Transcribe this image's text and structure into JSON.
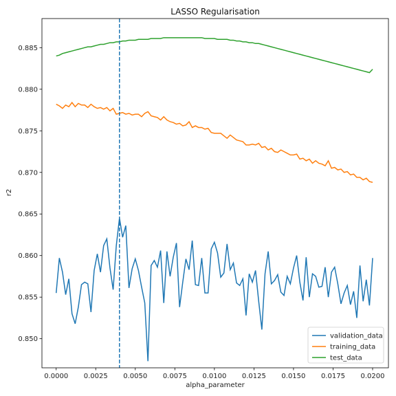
{
  "chart_data": {
    "type": "line",
    "title": "LASSO Regularisation",
    "xlabel": "alpha_parameter",
    "ylabel": "r2",
    "xlim": [
      -0.0009,
      0.021
    ],
    "ylim": [
      0.8465,
      0.8885
    ],
    "xticks": [
      0.0,
      0.0025,
      0.005,
      0.0075,
      0.01,
      0.0125,
      0.015,
      0.0175,
      0.02
    ],
    "xtick_labels": [
      "0.0000",
      "0.0025",
      "0.0050",
      "0.0075",
      "0.0100",
      "0.0125",
      "0.0150",
      "0.0175",
      "0.0200"
    ],
    "yticks": [
      0.85,
      0.855,
      0.86,
      0.865,
      0.87,
      0.875,
      0.88,
      0.885
    ],
    "ytick_labels": [
      "0.850",
      "0.855",
      "0.860",
      "0.865",
      "0.870",
      "0.875",
      "0.880",
      "0.885"
    ],
    "grid": false,
    "legend_position": "bottom-right",
    "vline": {
      "x": 0.004,
      "style": "dashed",
      "color": "#1f77b4"
    },
    "x_range": {
      "start": 0.0,
      "end": 0.02,
      "points": 101
    },
    "series": [
      {
        "name": "validation_data",
        "color": "#1f77b4",
        "values": [
          0.8555,
          0.8597,
          0.858,
          0.8553,
          0.8572,
          0.853,
          0.8518,
          0.8538,
          0.8565,
          0.8568,
          0.8566,
          0.8532,
          0.8582,
          0.8602,
          0.858,
          0.8612,
          0.862,
          0.8585,
          0.8559,
          0.8612,
          0.8645,
          0.8622,
          0.8636,
          0.8561,
          0.8584,
          0.8596,
          0.8582,
          0.8562,
          0.8543,
          0.8473,
          0.8588,
          0.8594,
          0.8586,
          0.8606,
          0.8543,
          0.8605,
          0.8575,
          0.8598,
          0.8615,
          0.8538,
          0.8568,
          0.8596,
          0.8583,
          0.8618,
          0.8565,
          0.8564,
          0.8597,
          0.8555,
          0.8555,
          0.8608,
          0.8616,
          0.8603,
          0.8574,
          0.8579,
          0.8614,
          0.8583,
          0.8591,
          0.8567,
          0.8564,
          0.8572,
          0.8528,
          0.8578,
          0.8568,
          0.8582,
          0.8545,
          0.8511,
          0.8578,
          0.8605,
          0.8566,
          0.857,
          0.8577,
          0.8556,
          0.8552,
          0.8575,
          0.8566,
          0.8585,
          0.86,
          0.8568,
          0.8546,
          0.8598,
          0.855,
          0.8578,
          0.8575,
          0.8562,
          0.8563,
          0.8586,
          0.855,
          0.858,
          0.8586,
          0.8566,
          0.8542,
          0.8555,
          0.8564,
          0.8541,
          0.8557,
          0.8525,
          0.8588,
          0.8545,
          0.8571,
          0.854,
          0.8597
        ]
      },
      {
        "name": "training_data",
        "color": "#ff7f0e",
        "values": [
          0.8782,
          0.878,
          0.8777,
          0.8781,
          0.8779,
          0.8784,
          0.8779,
          0.8783,
          0.8781,
          0.8781,
          0.8778,
          0.8782,
          0.8779,
          0.8777,
          0.8778,
          0.8776,
          0.8778,
          0.8774,
          0.8777,
          0.877,
          0.8771,
          0.8772,
          0.877,
          0.8771,
          0.8769,
          0.877,
          0.877,
          0.8767,
          0.8771,
          0.8773,
          0.8768,
          0.8767,
          0.8766,
          0.8763,
          0.8767,
          0.8763,
          0.8761,
          0.876,
          0.8758,
          0.8759,
          0.8756,
          0.8757,
          0.8761,
          0.8754,
          0.8756,
          0.8754,
          0.8754,
          0.8752,
          0.8753,
          0.8748,
          0.8747,
          0.8747,
          0.8747,
          0.8744,
          0.8741,
          0.8745,
          0.8742,
          0.8739,
          0.8738,
          0.8737,
          0.8733,
          0.8733,
          0.8734,
          0.8733,
          0.8735,
          0.873,
          0.8731,
          0.8727,
          0.8729,
          0.8725,
          0.8724,
          0.8727,
          0.8725,
          0.8723,
          0.8721,
          0.8721,
          0.8722,
          0.8716,
          0.8717,
          0.8714,
          0.8716,
          0.8711,
          0.8714,
          0.8711,
          0.871,
          0.8708,
          0.8714,
          0.8705,
          0.8706,
          0.8703,
          0.8704,
          0.87,
          0.8701,
          0.8697,
          0.8698,
          0.8694,
          0.8694,
          0.8691,
          0.8693,
          0.8689,
          0.8688
        ]
      },
      {
        "name": "test_data",
        "color": "#2ca02c",
        "values": [
          0.884,
          0.8841,
          0.8843,
          0.8844,
          0.8845,
          0.8846,
          0.8847,
          0.8848,
          0.8849,
          0.885,
          0.8851,
          0.8851,
          0.8852,
          0.8853,
          0.8854,
          0.8854,
          0.8855,
          0.8856,
          0.8856,
          0.8857,
          0.8857,
          0.8858,
          0.8858,
          0.8859,
          0.8859,
          0.8859,
          0.886,
          0.886,
          0.886,
          0.886,
          0.8861,
          0.8861,
          0.8861,
          0.8861,
          0.8862,
          0.8862,
          0.8862,
          0.8862,
          0.8862,
          0.8862,
          0.8862,
          0.8862,
          0.8862,
          0.8862,
          0.8862,
          0.8862,
          0.8862,
          0.8861,
          0.8861,
          0.8861,
          0.8861,
          0.886,
          0.886,
          0.886,
          0.886,
          0.8859,
          0.8859,
          0.8858,
          0.8858,
          0.8857,
          0.8857,
          0.8856,
          0.8856,
          0.8855,
          0.8855,
          0.8854,
          0.8853,
          0.8852,
          0.8851,
          0.885,
          0.8849,
          0.8848,
          0.8847,
          0.8846,
          0.8845,
          0.8844,
          0.8843,
          0.8842,
          0.8841,
          0.884,
          0.8839,
          0.8838,
          0.8837,
          0.8836,
          0.8835,
          0.8834,
          0.8833,
          0.8832,
          0.8831,
          0.883,
          0.8829,
          0.8828,
          0.8827,
          0.8826,
          0.8825,
          0.8824,
          0.8823,
          0.8822,
          0.8821,
          0.882,
          0.8824
        ]
      }
    ]
  }
}
